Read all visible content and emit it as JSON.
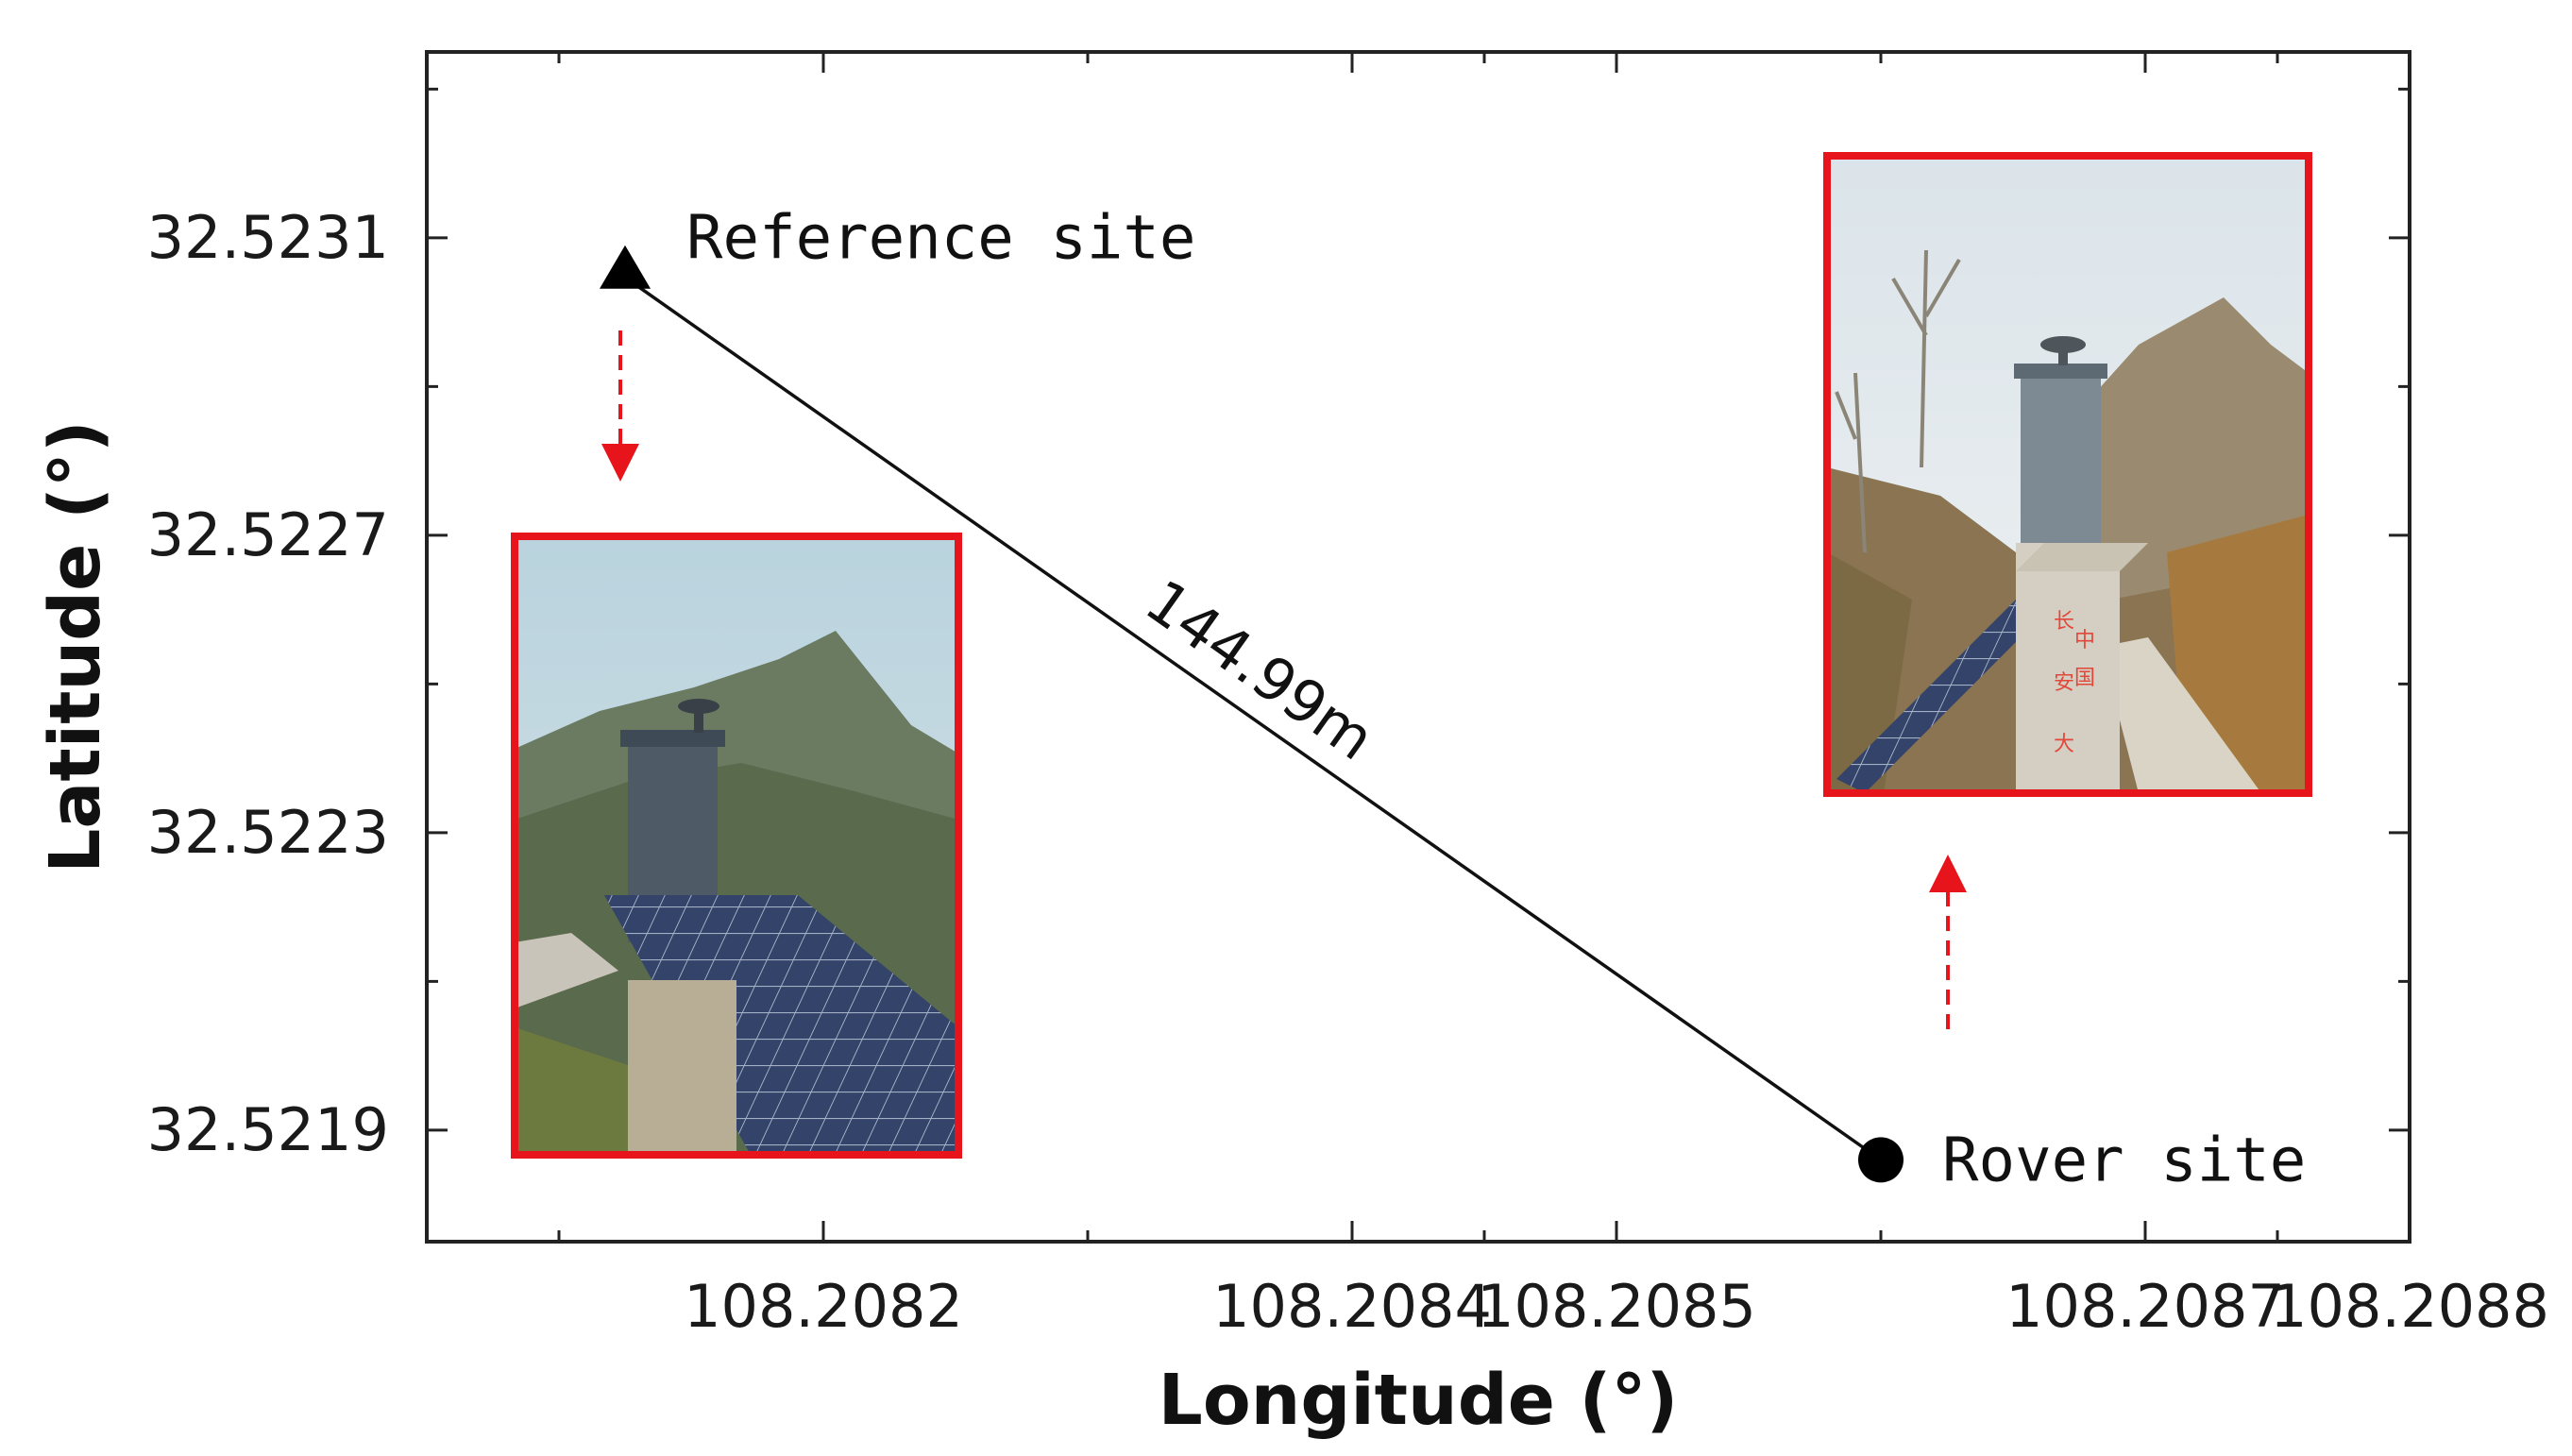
{
  "chart_data": {
    "type": "scatter",
    "xlabel": "Longitude (°)",
    "ylabel": "Latitude (°)",
    "xlim": [
      108.20805,
      108.2088
    ],
    "ylim": [
      32.52175,
      32.52335
    ],
    "x_ticks": [
      108.2082,
      108.2084,
      108.2085,
      108.2087,
      108.2088
    ],
    "x_tick_labels": [
      "108.2082",
      "108.2084",
      "108.2085",
      "108.2087",
      "108.2088"
    ],
    "y_ticks": [
      32.5219,
      32.5223,
      32.5227,
      32.5231
    ],
    "y_tick_labels": [
      "32.5219",
      "32.5223",
      "32.5227",
      "32.5231"
    ],
    "grid": false,
    "points": [
      {
        "label": "Reference site",
        "x": 108.208125,
        "y": 32.523057,
        "marker": "triangle"
      },
      {
        "label": "Rover site",
        "x": 108.2086,
        "y": 32.52186,
        "marker": "circle"
      }
    ],
    "distance_label": "144.99m",
    "photo_frame_color": "#e8141b",
    "arrow_color": "#e8141b"
  }
}
